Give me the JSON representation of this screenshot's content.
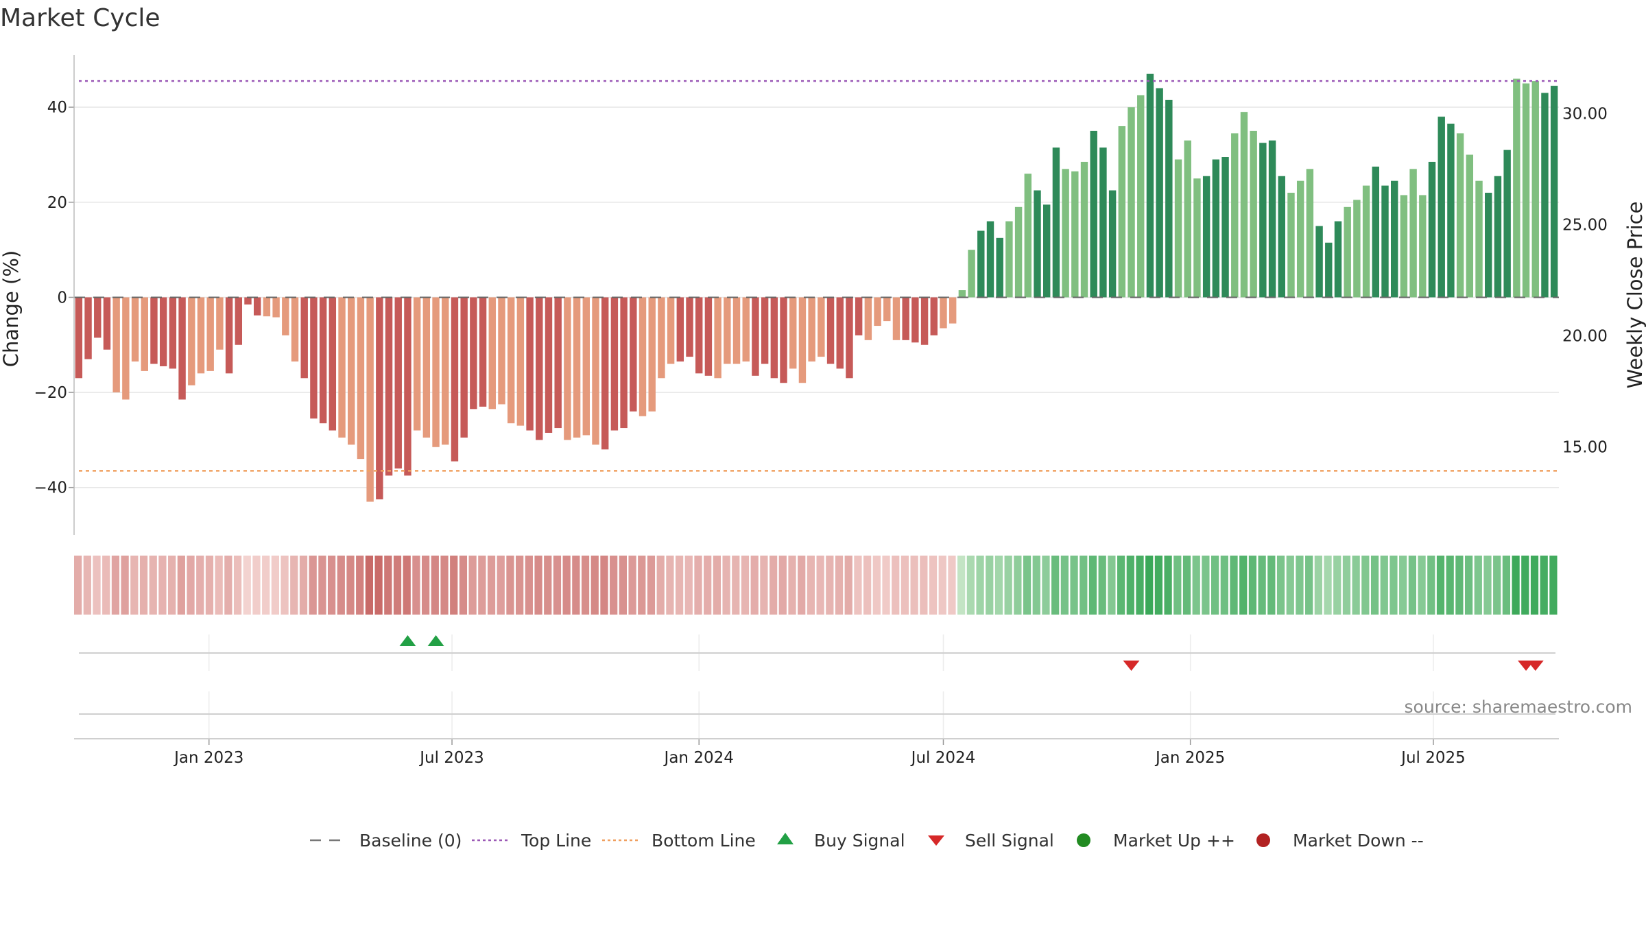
{
  "title": "Market Cycle",
  "source": "source: sharemaestro.com",
  "colors": {
    "red_dark": "#c65a58",
    "red_light": "#e59a7c",
    "green_dark": "#2e8a59",
    "green_light": "#80bf80",
    "top_line": "#9b59b6",
    "bottom_line": "#f0a060",
    "buy": "#22a045",
    "sell": "#d62828",
    "market_up": "#228b22",
    "market_down": "#b22222"
  },
  "chart_data": {
    "type": "bar",
    "x_start": "2022-09-26",
    "x_interval": "weekly",
    "ylabel": "Change (%)",
    "ylabel_right": "Weekly Close Price",
    "ylim": [
      -50,
      51
    ],
    "y2lim": [
      11.0,
      32.6
    ],
    "yticks": [
      "40",
      "20",
      "0",
      "−20",
      "−40"
    ],
    "y2ticks": [
      "30.00",
      "25.00",
      "20.00",
      "15.00"
    ],
    "xticks": [
      "Jan 2023",
      "Jul 2023",
      "Jan 2024",
      "Jul 2024",
      "Jan 2025",
      "Jul 2025"
    ],
    "top_line": 45.5,
    "bottom_line": -36.5,
    "values": [
      -17,
      -13,
      -8.5,
      -11,
      -20,
      -21.5,
      -13.5,
      -15.5,
      -14,
      -14.5,
      -15,
      -21.5,
      -18.5,
      -16,
      -15.5,
      -11,
      -16,
      -10,
      -1.5,
      -3.8,
      -4,
      -4.2,
      -8,
      -13.5,
      -17,
      -25.5,
      -26.5,
      -28,
      -29.5,
      -31,
      -34,
      -43,
      -42.5,
      -37.5,
      -36,
      -37.5,
      -28,
      -29.5,
      -31.5,
      -31,
      -34.5,
      -29.5,
      -23.5,
      -23,
      -23.5,
      -22.5,
      -26.5,
      -27,
      -28,
      -30,
      -28.5,
      -27.5,
      -30,
      -29.5,
      -29,
      -31,
      -32,
      -28,
      -27.5,
      -24,
      -25,
      -24,
      -17,
      -14,
      -13.5,
      -12.5,
      -16,
      -16.5,
      -17,
      -14,
      -14,
      -13.5,
      -16.5,
      -14,
      -17,
      -18,
      -15,
      -18,
      -13.5,
      -12.5,
      -14,
      -15,
      -17,
      -8,
      -9,
      -6,
      -5,
      -9,
      -9,
      -9.5,
      -10,
      -8,
      -6.5,
      -5.5,
      1.5,
      10,
      14,
      16,
      12.5,
      16,
      19,
      26,
      22.5,
      19.5,
      31.5,
      27,
      26.5,
      28.5,
      35,
      31.5,
      22.5,
      36,
      40,
      42.5,
      47,
      44,
      41.5,
      29,
      33,
      25,
      25.5,
      29,
      29.5,
      34.5,
      39,
      35,
      32.5,
      33,
      25.5,
      22,
      24.5,
      27,
      15,
      11.5,
      16,
      19,
      20.5,
      23.5,
      27.5,
      23.5,
      24.5,
      21.5,
      27,
      21.5,
      28.5,
      38,
      36.5,
      34.5,
      30,
      24.5,
      22,
      25.5,
      31,
      46,
      45,
      45.5,
      43,
      44.5
    ],
    "buy_signals": [
      "2023-05-29",
      "2023-06-19"
    ],
    "sell_signals": [
      "2024-11-18",
      "2025-09-08",
      "2025-09-15"
    ],
    "legend": [
      {
        "label": "Baseline (0)",
        "marker": "dash",
        "color": "#777777"
      },
      {
        "label": "Top Line",
        "marker": "dot",
        "color": "#9b59b6"
      },
      {
        "label": "Bottom Line",
        "marker": "dot",
        "color": "#f0a060"
      },
      {
        "label": "Buy Signal",
        "marker": "triangle-up",
        "color": "#22a045"
      },
      {
        "label": "Sell Signal",
        "marker": "triangle-down",
        "color": "#d62828"
      },
      {
        "label": "Market Up ++",
        "marker": "circle",
        "color": "#228b22"
      },
      {
        "label": "Market Down --",
        "marker": "circle",
        "color": "#b22222"
      }
    ]
  }
}
